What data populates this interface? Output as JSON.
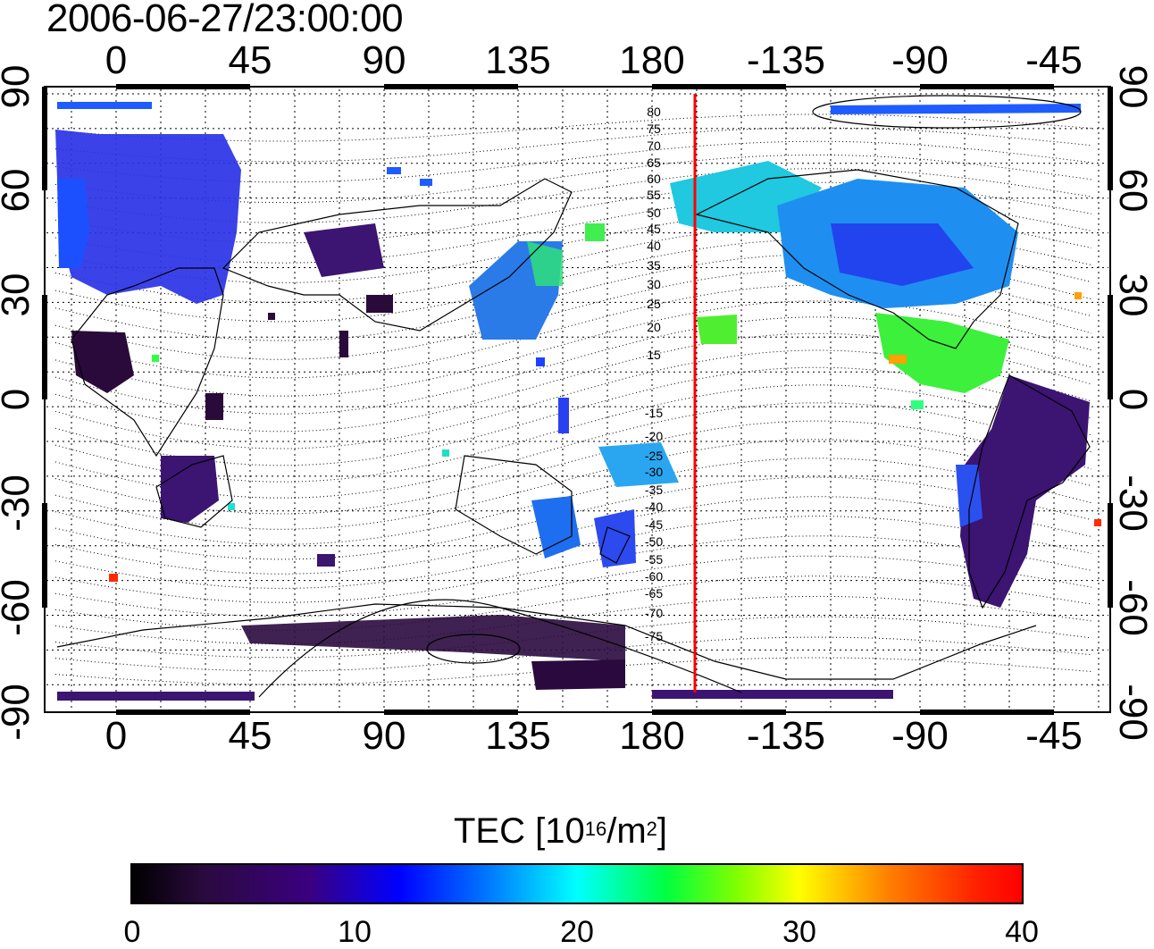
{
  "title": "2006-06-27/23:00:00",
  "map": {
    "lon_ticks": [
      "0",
      "45",
      "90",
      "135",
      "180",
      "-135",
      "-90",
      "-45"
    ],
    "lat_ticks": [
      "90",
      "60",
      "30",
      "0",
      "-30",
      "-60",
      "-90"
    ],
    "contour_labels": [
      "80",
      "75",
      "70",
      "65",
      "60",
      "55",
      "50",
      "45",
      "40",
      "35",
      "30",
      "25",
      "20",
      "15",
      "-15",
      "-20",
      "-25",
      "-30",
      "-35",
      "-40",
      "-45",
      "-50",
      "-55",
      "-60",
      "-65",
      "-70",
      "-75"
    ],
    "meridian_line": {
      "longitude": -165,
      "color": "#ff0000"
    },
    "grid": true
  },
  "colorbar": {
    "label_prefix": "TEC  [10",
    "label_exp1": "16",
    "label_mid": "/m",
    "label_exp2": "2",
    "label_suffix": "]",
    "ticks": [
      "0",
      "10",
      "20",
      "30",
      "40"
    ],
    "range": [
      0,
      40
    ],
    "colors": [
      "#000000",
      "#3a0080",
      "#0000ff",
      "#00ffff",
      "#00ff40",
      "#ffff00",
      "#ff0000"
    ]
  }
}
